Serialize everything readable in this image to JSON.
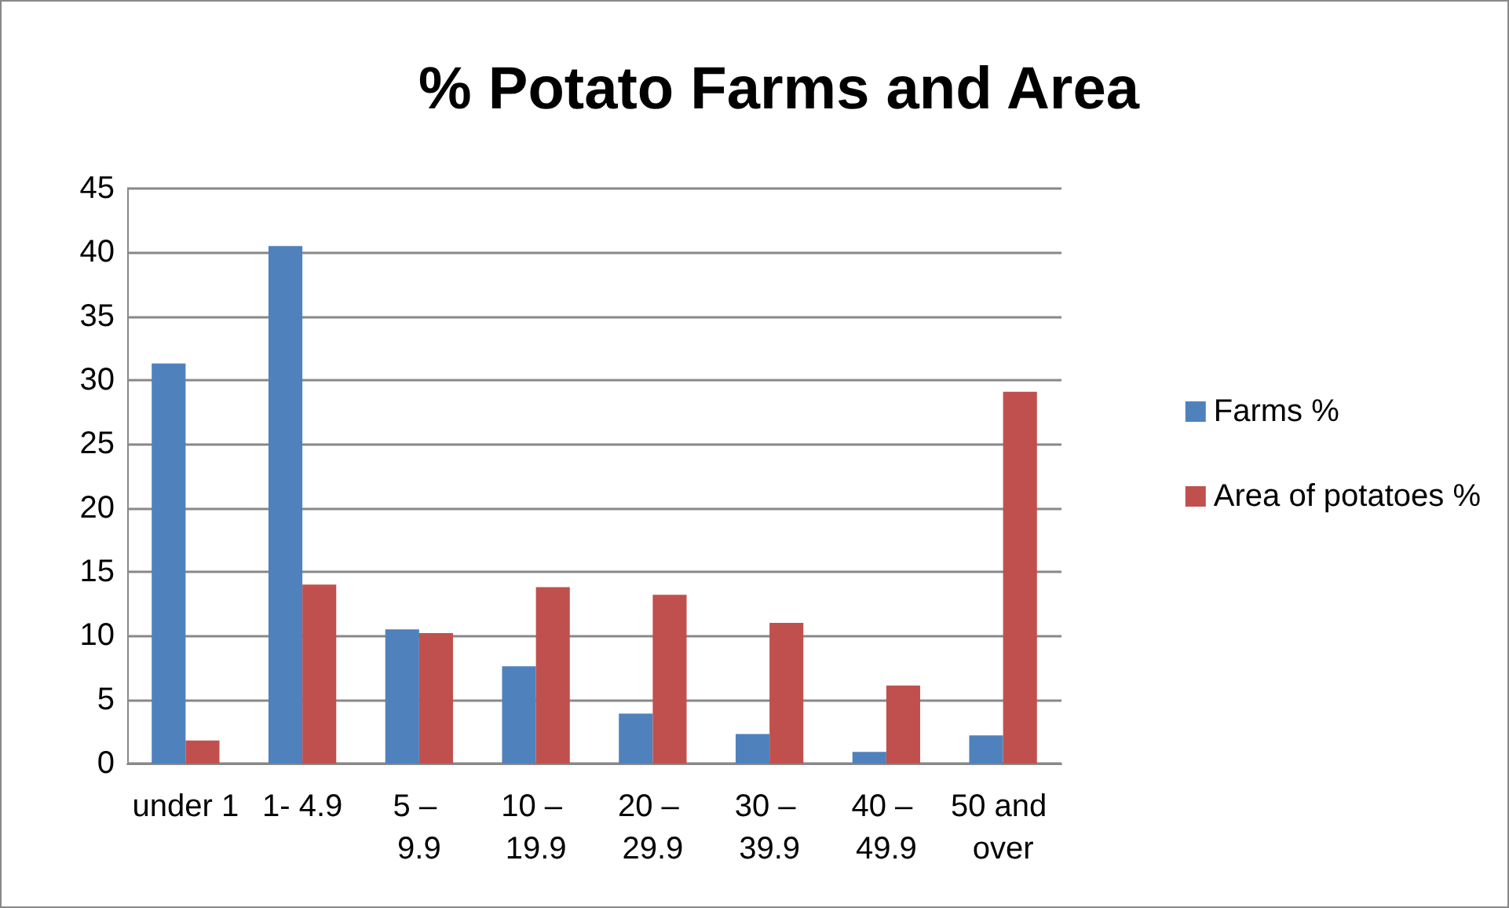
{
  "chart_data": {
    "type": "bar",
    "title": "% Potato Farms and Area",
    "categories": [
      "under 1",
      "1- 4.9",
      "5 – 9.9",
      "10 – 19.9",
      "20 – 29.9",
      "30 – 39.9",
      "40 – 49.9",
      "50 and over"
    ],
    "series": [
      {
        "name": "Farms %",
        "color": "#4f81bd",
        "values": [
          31.3,
          40.5,
          10.5,
          7.6,
          3.9,
          2.3,
          0.9,
          2.2
        ]
      },
      {
        "name": "Area of potatoes %",
        "color": "#c0504d",
        "values": [
          1.8,
          14.0,
          10.2,
          13.8,
          13.2,
          11.0,
          6.1,
          29.1
        ]
      }
    ],
    "ylim": [
      0,
      45
    ],
    "yticks": [
      0,
      5,
      10,
      15,
      20,
      25,
      30,
      35,
      40,
      45
    ],
    "grid": "y",
    "legend": "right"
  }
}
